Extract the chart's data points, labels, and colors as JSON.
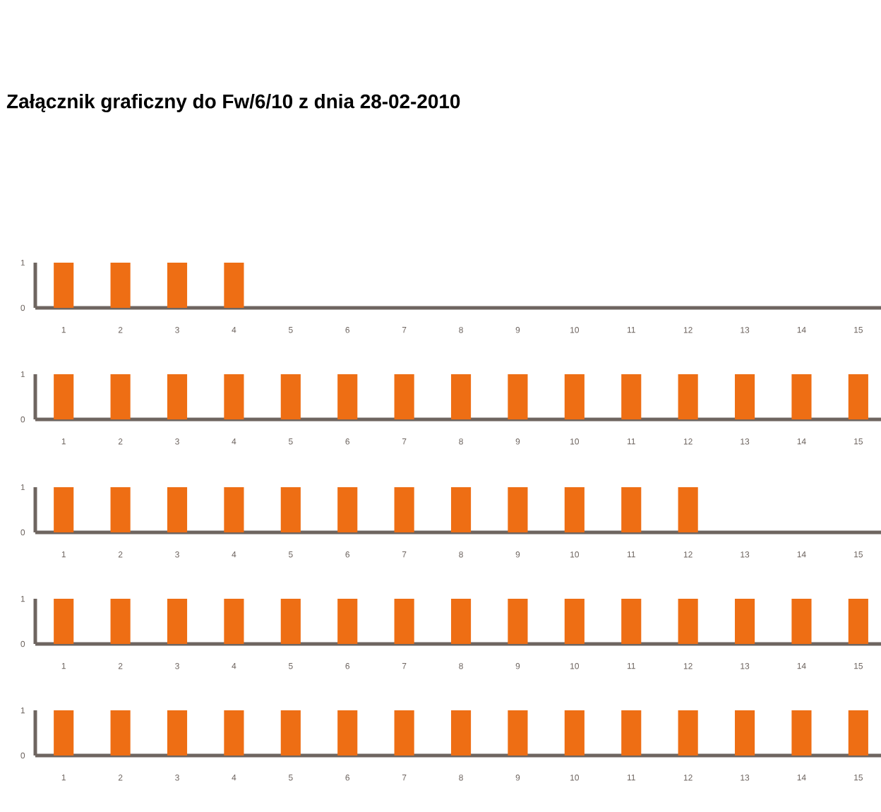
{
  "chart_data": [
    {
      "type": "bar",
      "title": "Załącznik graficzny do Fw/6/10 z dnia 28-02-2010",
      "categories": [
        "1",
        "2",
        "3",
        "4",
        "5",
        "6",
        "7",
        "8",
        "9",
        "10",
        "11",
        "12",
        "13",
        "14",
        "15"
      ],
      "values": [
        1,
        1,
        1,
        1,
        0,
        0,
        0,
        0,
        0,
        0,
        0,
        0,
        0,
        0,
        0
      ],
      "color": "#ee6e14",
      "ylim": [
        0,
        1
      ],
      "yticks": [
        0,
        1
      ]
    },
    {
      "type": "bar",
      "categories": [
        "1",
        "2",
        "3",
        "4",
        "5",
        "6",
        "7",
        "8",
        "9",
        "10",
        "11",
        "12",
        "13",
        "14",
        "15"
      ],
      "values": [
        1,
        1,
        1,
        1,
        1,
        1,
        1,
        1,
        1,
        1,
        1,
        1,
        1,
        1,
        1
      ],
      "color": "#ee6e14",
      "ylim": [
        0,
        1
      ],
      "yticks": [
        0,
        1
      ]
    },
    {
      "type": "bar",
      "categories": [
        "1",
        "2",
        "3",
        "4",
        "5",
        "6",
        "7",
        "8",
        "9",
        "10",
        "11",
        "12",
        "13",
        "14",
        "15"
      ],
      "values": [
        1,
        1,
        1,
        1,
        1,
        1,
        1,
        1,
        1,
        1,
        1,
        1,
        0,
        0,
        0
      ],
      "color": "#ee6e14",
      "ylim": [
        0,
        1
      ],
      "yticks": [
        0,
        1
      ]
    },
    {
      "type": "bar",
      "categories": [
        "1",
        "2",
        "3",
        "4",
        "5",
        "6",
        "7",
        "8",
        "9",
        "10",
        "11",
        "12",
        "13",
        "14",
        "15"
      ],
      "values": [
        1,
        1,
        1,
        1,
        1,
        1,
        1,
        1,
        1,
        1,
        1,
        1,
        1,
        1,
        1
      ],
      "color": "#ee6e14",
      "ylim": [
        0,
        1
      ],
      "yticks": [
        0,
        1
      ]
    },
    {
      "type": "bar",
      "categories": [
        "1",
        "2",
        "3",
        "4",
        "5",
        "6",
        "7",
        "8",
        "9",
        "10",
        "11",
        "12",
        "13",
        "14",
        "15"
      ],
      "values": [
        1,
        1,
        1,
        1,
        1,
        1,
        1,
        1,
        1,
        1,
        1,
        1,
        1,
        1,
        1
      ],
      "color": "#ee6e14",
      "ylim": [
        0,
        1
      ],
      "yticks": [
        0,
        1
      ]
    }
  ]
}
